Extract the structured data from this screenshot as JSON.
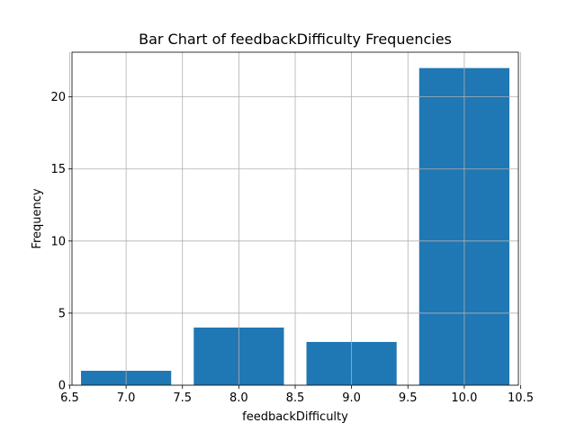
{
  "chart_data": {
    "type": "bar",
    "title": "Bar Chart of feedbackDifficulty Frequencies",
    "xlabel": "feedbackDifficulty",
    "ylabel": "Frequency",
    "x": [
      7.0,
      8.0,
      9.0,
      10.0
    ],
    "values": [
      1,
      4,
      3,
      22
    ],
    "bar_width": 0.8,
    "xlim": [
      6.52,
      10.48
    ],
    "ylim": [
      0,
      23.1
    ],
    "xticks": [
      "6.5",
      "7.0",
      "7.5",
      "8.0",
      "8.5",
      "9.0",
      "9.5",
      "10.0",
      "10.5"
    ],
    "yticks": [
      "0",
      "5",
      "10",
      "15",
      "20"
    ],
    "grid": true,
    "bar_color": "#1f77b4"
  }
}
